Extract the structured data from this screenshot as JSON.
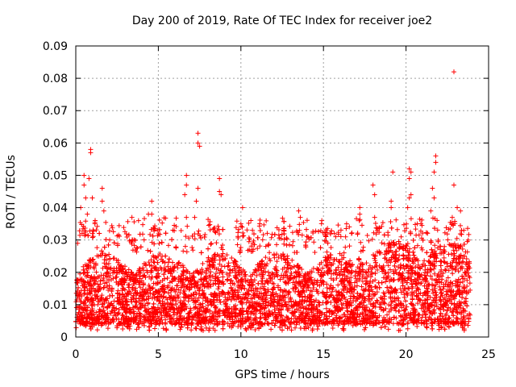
{
  "chart_data": {
    "type": "scatter",
    "title": "Day 200 of 2019, Rate Of TEC Index for receiver joe2",
    "xlabel": "GPS time / hours",
    "ylabel": "ROTI / TECUs",
    "xlim": [
      0,
      25
    ],
    "ylim": [
      0,
      0.09
    ],
    "grid": true,
    "marker": "+",
    "color": "#ff0000",
    "x_ticks": [
      0,
      5,
      10,
      15,
      20,
      25
    ],
    "y_ticks": [
      0,
      0.01,
      0.02,
      0.03,
      0.04,
      0.05,
      0.06,
      0.07,
      0.08,
      0.09
    ],
    "x_tick_labels": [
      "0",
      "5",
      "10",
      "15",
      "20",
      "25"
    ],
    "y_tick_labels": [
      "0",
      "0.01",
      "0.02",
      "0.03",
      "0.04",
      "0.05",
      "0.06",
      "0.07",
      "0.08",
      "0.09"
    ],
    "series": [
      {
        "name": "ROTI",
        "dense_band": {
          "x_range": [
            0.0,
            23.9
          ],
          "y_range": [
            0.002,
            0.03
          ]
        },
        "outliers": [
          {
            "x": 0.5,
            "y": 0.05
          },
          {
            "x": 0.8,
            "y": 0.049
          },
          {
            "x": 0.9,
            "y": 0.058
          },
          {
            "x": 0.9,
            "y": 0.057
          },
          {
            "x": 0.5,
            "y": 0.047
          },
          {
            "x": 0.6,
            "y": 0.043
          },
          {
            "x": 0.3,
            "y": 0.04
          },
          {
            "x": 0.7,
            "y": 0.038
          },
          {
            "x": 1.0,
            "y": 0.043
          },
          {
            "x": 1.6,
            "y": 0.046
          },
          {
            "x": 1.6,
            "y": 0.042
          },
          {
            "x": 1.7,
            "y": 0.039
          },
          {
            "x": 3.4,
            "y": 0.037
          },
          {
            "x": 3.8,
            "y": 0.036
          },
          {
            "x": 4.4,
            "y": 0.038
          },
          {
            "x": 4.6,
            "y": 0.042
          },
          {
            "x": 4.6,
            "y": 0.038
          },
          {
            "x": 6.7,
            "y": 0.05
          },
          {
            "x": 6.7,
            "y": 0.047
          },
          {
            "x": 6.6,
            "y": 0.044
          },
          {
            "x": 6.7,
            "y": 0.037
          },
          {
            "x": 7.4,
            "y": 0.063
          },
          {
            "x": 7.4,
            "y": 0.06
          },
          {
            "x": 7.5,
            "y": 0.059
          },
          {
            "x": 7.4,
            "y": 0.046
          },
          {
            "x": 7.3,
            "y": 0.042
          },
          {
            "x": 7.2,
            "y": 0.037
          },
          {
            "x": 8.7,
            "y": 0.049
          },
          {
            "x": 8.7,
            "y": 0.045
          },
          {
            "x": 8.8,
            "y": 0.044
          },
          {
            "x": 10.1,
            "y": 0.04
          },
          {
            "x": 10.0,
            "y": 0.035
          },
          {
            "x": 10.7,
            "y": 0.033
          },
          {
            "x": 13.5,
            "y": 0.039
          },
          {
            "x": 13.6,
            "y": 0.037
          },
          {
            "x": 14.9,
            "y": 0.036
          },
          {
            "x": 16.4,
            "y": 0.035
          },
          {
            "x": 17.2,
            "y": 0.04
          },
          {
            "x": 17.2,
            "y": 0.038
          },
          {
            "x": 18.0,
            "y": 0.047
          },
          {
            "x": 18.1,
            "y": 0.044
          },
          {
            "x": 18.1,
            "y": 0.037
          },
          {
            "x": 19.2,
            "y": 0.051
          },
          {
            "x": 19.1,
            "y": 0.042
          },
          {
            "x": 19.1,
            "y": 0.04
          },
          {
            "x": 20.2,
            "y": 0.052
          },
          {
            "x": 20.3,
            "y": 0.051
          },
          {
            "x": 20.2,
            "y": 0.049
          },
          {
            "x": 20.3,
            "y": 0.044
          },
          {
            "x": 20.2,
            "y": 0.043
          },
          {
            "x": 20.1,
            "y": 0.04
          },
          {
            "x": 21.8,
            "y": 0.056
          },
          {
            "x": 21.8,
            "y": 0.054
          },
          {
            "x": 21.7,
            "y": 0.051
          },
          {
            "x": 21.6,
            "y": 0.046
          },
          {
            "x": 21.7,
            "y": 0.043
          },
          {
            "x": 21.5,
            "y": 0.039
          },
          {
            "x": 22.9,
            "y": 0.082
          },
          {
            "x": 22.9,
            "y": 0.047
          },
          {
            "x": 23.1,
            "y": 0.04
          },
          {
            "x": 23.3,
            "y": 0.039
          },
          {
            "x": 22.8,
            "y": 0.037
          },
          {
            "x": 23.5,
            "y": 0.033
          }
        ]
      }
    ]
  }
}
